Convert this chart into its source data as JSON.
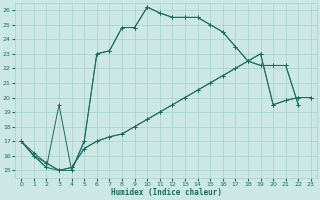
{
  "xlabel": "Humidex (Indice chaleur)",
  "xlim": [
    -0.5,
    23.5
  ],
  "ylim": [
    14.5,
    26.5
  ],
  "yticks": [
    15,
    16,
    17,
    18,
    19,
    20,
    21,
    22,
    23,
    24,
    25,
    26
  ],
  "xticks": [
    0,
    1,
    2,
    3,
    4,
    5,
    6,
    7,
    8,
    9,
    10,
    11,
    12,
    13,
    14,
    15,
    16,
    17,
    18,
    19,
    20,
    21,
    22,
    23
  ],
  "bg_color": "#cce8e4",
  "line_color": "#1a6b5e",
  "grid_color": "#a8d0cc",
  "lines": [
    {
      "x": [
        0,
        1,
        2,
        3,
        4,
        5,
        6,
        7,
        8,
        9,
        10,
        11,
        12,
        13,
        14,
        15,
        16,
        17,
        18,
        19,
        20,
        21,
        22,
        23
      ],
      "y": [
        17.0,
        16.0,
        15.5,
        15.0,
        15.2,
        16.5,
        17.0,
        17.3,
        17.5,
        18.0,
        18.5,
        19.0,
        19.5,
        20.0,
        20.5,
        21.0,
        21.5,
        22.0,
        22.5,
        23.0,
        19.5,
        19.8,
        20.0,
        20.0
      ],
      "style": "-",
      "marker": "+"
    },
    {
      "x": [
        0,
        1,
        2,
        3,
        4,
        5,
        6,
        7,
        8,
        9,
        10,
        11,
        12,
        13,
        14,
        15,
        16,
        17,
        18,
        19,
        20,
        21,
        22,
        23
      ],
      "y": [
        17.0,
        16.2,
        15.5,
        15.0,
        15.2,
        16.5,
        17.0,
        17.3,
        17.5,
        18.0,
        18.5,
        19.0,
        19.5,
        20.0,
        20.5,
        21.0,
        21.5,
        22.0,
        22.5,
        23.0,
        19.5,
        19.8,
        20.0,
        20.0
      ],
      "style": "-",
      "marker": "+"
    },
    {
      "x": [
        0,
        1,
        2,
        3,
        4,
        5,
        6,
        7,
        8,
        9,
        10,
        11,
        12,
        13,
        14,
        15,
        16,
        17,
        18,
        19,
        20,
        21,
        22
      ],
      "y": [
        17.0,
        16.0,
        15.2,
        19.5,
        15.0,
        17.0,
        23.0,
        23.2,
        24.8,
        24.8,
        26.2,
        25.8,
        25.5,
        25.5,
        25.5,
        25.0,
        24.5,
        23.5,
        22.5,
        22.2,
        22.2,
        22.2,
        19.5
      ],
      "style": "-",
      "marker": "+"
    },
    {
      "x": [
        0,
        1,
        2,
        3,
        4,
        5,
        6,
        7,
        8,
        9,
        10,
        11,
        12,
        13,
        14,
        15,
        16,
        17,
        18,
        19,
        20,
        21,
        22
      ],
      "y": [
        17.0,
        16.0,
        15.2,
        15.0,
        15.0,
        17.0,
        23.0,
        23.2,
        24.8,
        24.8,
        26.2,
        25.8,
        25.5,
        25.5,
        25.5,
        25.0,
        24.5,
        23.5,
        22.5,
        22.2,
        22.2,
        22.2,
        19.5
      ],
      "style": "-",
      "marker": "+"
    }
  ]
}
